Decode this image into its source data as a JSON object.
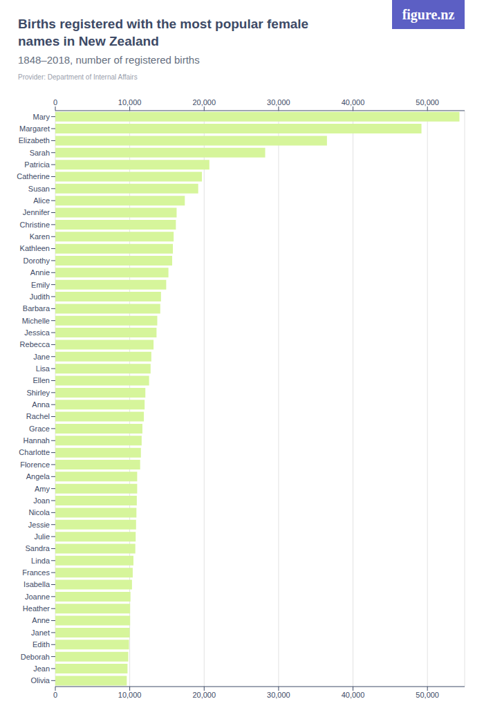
{
  "chart_data": {
    "type": "bar",
    "orientation": "horizontal",
    "title": "Births registered with the most popular female names in New Zealand",
    "subtitle": "1848–2018, number of registered births",
    "source": "Provider: Department of Internal Affairs",
    "brand": "figure.nz",
    "categories": [
      "Mary",
      "Margaret",
      "Elizabeth",
      "Sarah",
      "Patricia",
      "Catherine",
      "Susan",
      "Alice",
      "Jennifer",
      "Christine",
      "Karen",
      "Kathleen",
      "Dorothy",
      "Annie",
      "Emily",
      "Judith",
      "Barbara",
      "Michelle",
      "Jessica",
      "Rebecca",
      "Jane",
      "Lisa",
      "Ellen",
      "Shirley",
      "Anna",
      "Rachel",
      "Grace",
      "Hannah",
      "Charlotte",
      "Florence",
      "Angela",
      "Amy",
      "Joan",
      "Nicola",
      "Jessie",
      "Julie",
      "Sandra",
      "Linda",
      "Frances",
      "Isabella",
      "Joanne",
      "Heather",
      "Anne",
      "Janet",
      "Edith",
      "Deborah",
      "Jean",
      "Olivia"
    ],
    "values": [
      54300,
      49200,
      36500,
      28200,
      20700,
      19700,
      19200,
      17400,
      16300,
      16200,
      15900,
      15800,
      15700,
      15200,
      14900,
      14200,
      14100,
      13700,
      13600,
      13200,
      12900,
      12800,
      12600,
      12100,
      12000,
      11900,
      11700,
      11600,
      11500,
      11400,
      11000,
      11000,
      10950,
      10900,
      10850,
      10800,
      10750,
      10500,
      10400,
      10300,
      10100,
      10050,
      10050,
      10000,
      9900,
      9800,
      9700,
      9600
    ],
    "color": "#d6f59b",
    "xlim": [
      0,
      55000
    ],
    "xticks": [
      0,
      {
        "value": 10000,
        "label": "10,000"
      },
      {
        "value": 20000,
        "label": "20,000"
      },
      {
        "value": 30000,
        "label": "30,000"
      },
      {
        "value": 40000,
        "label": "40,000"
      },
      {
        "value": 50000,
        "label": "50,000"
      }
    ],
    "grid": true
  }
}
